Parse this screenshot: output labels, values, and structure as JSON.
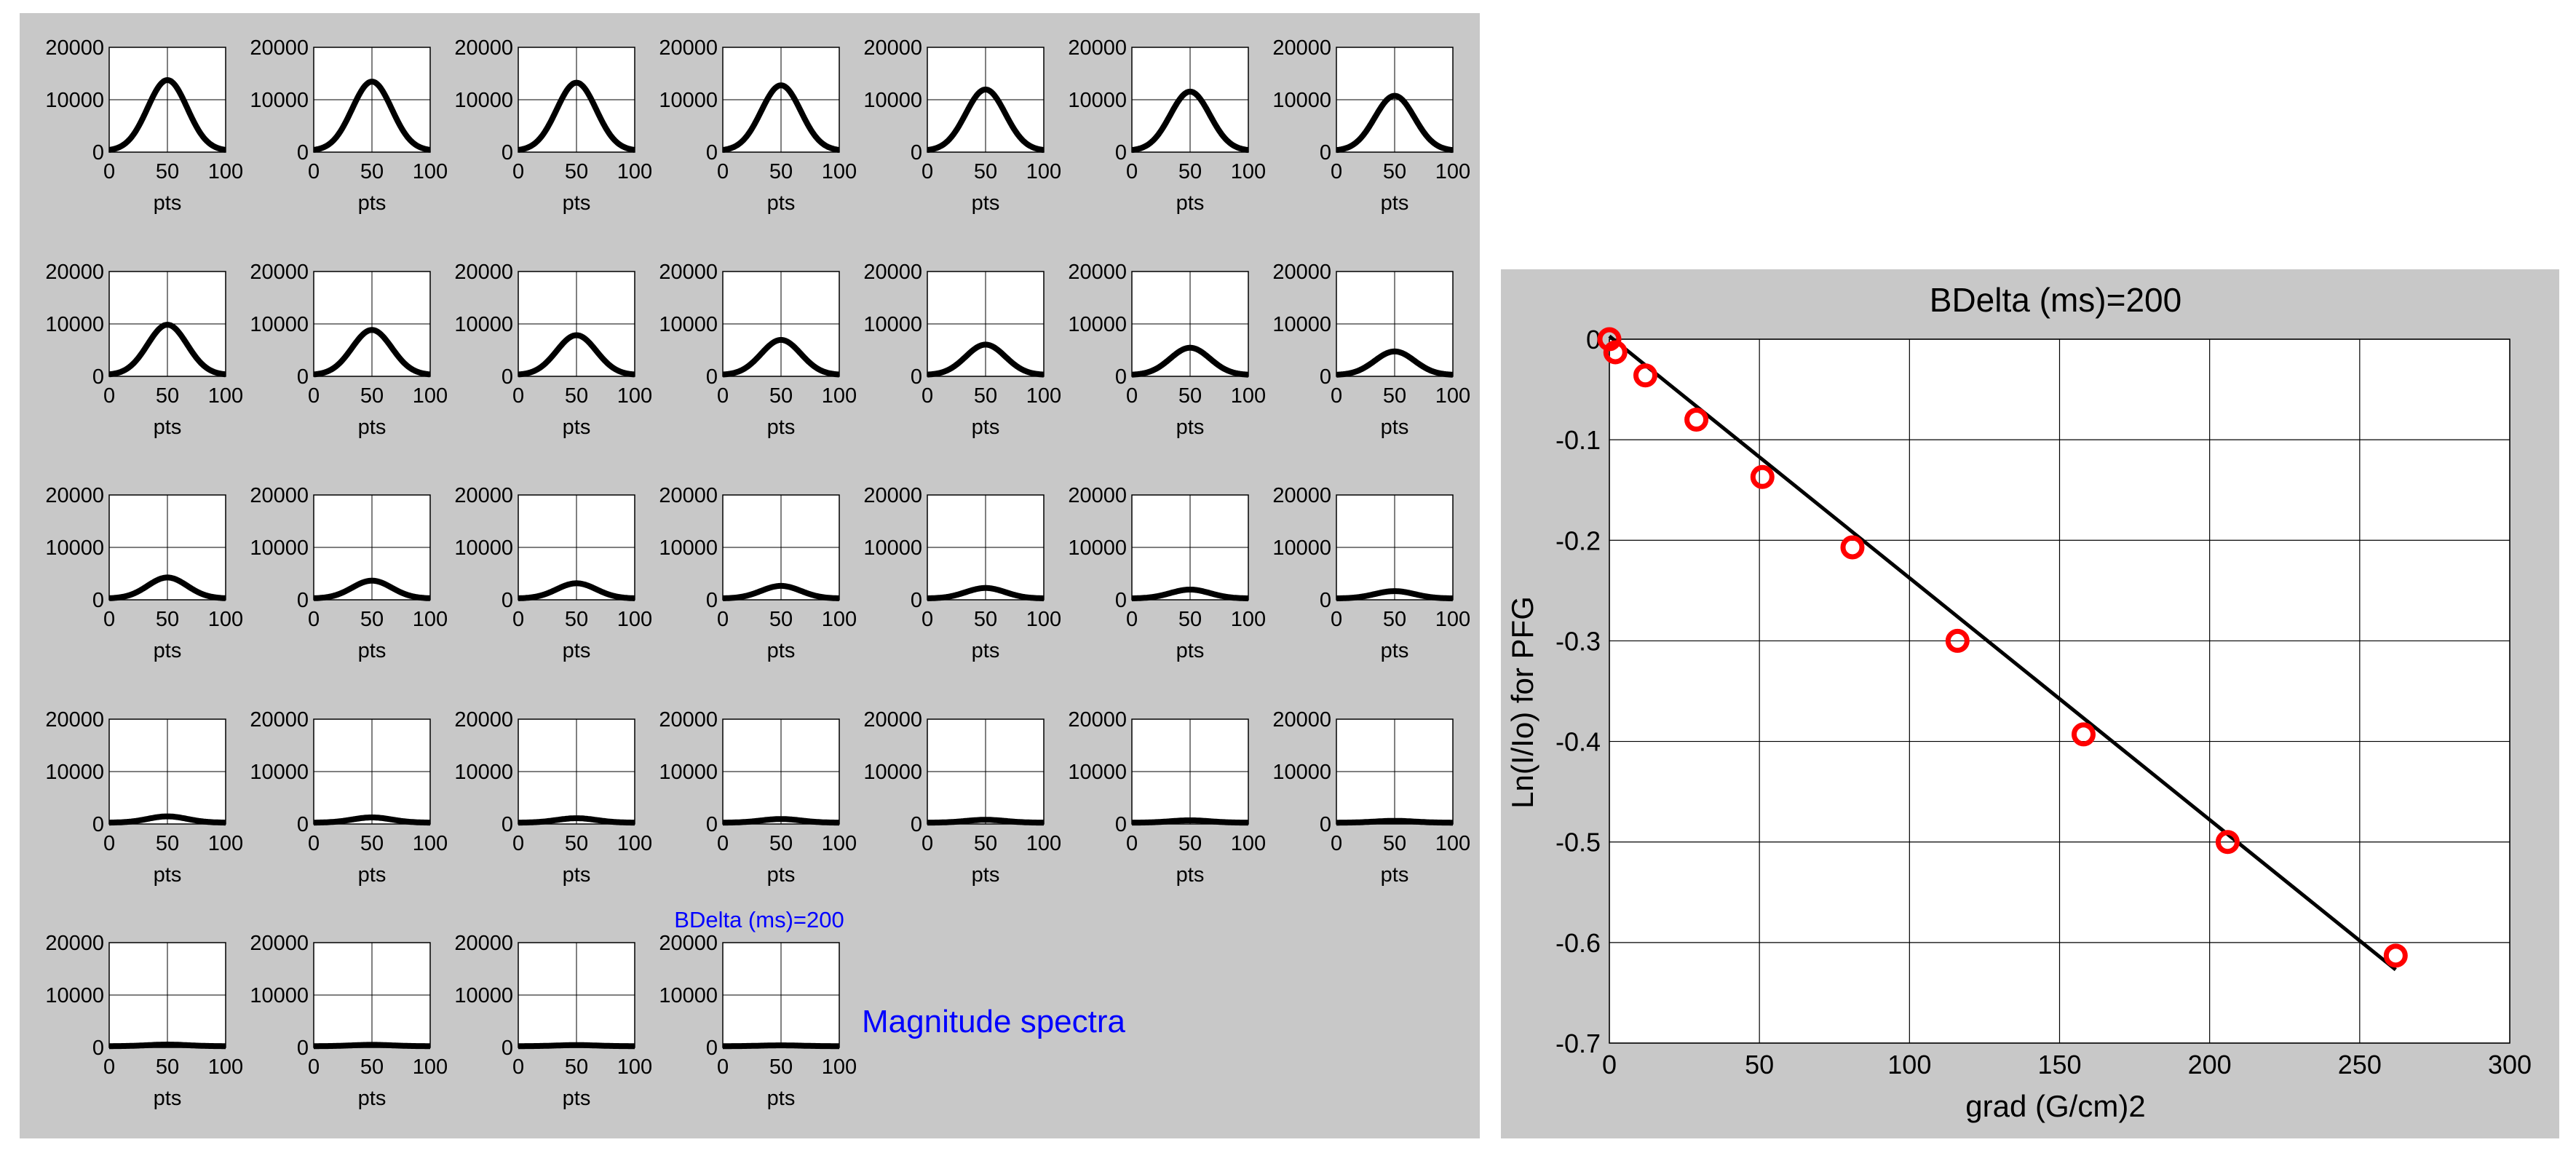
{
  "grid": {
    "xlim": [
      0,
      100
    ],
    "ylim": [
      0,
      20000
    ],
    "xticks": [
      "0",
      "50",
      "100"
    ],
    "yticks": [
      "0",
      "10000",
      "20000"
    ],
    "xlabel": "pts",
    "peak_center": 50,
    "peak_heights": [
      13500,
      13200,
      13000,
      12500,
      11700,
      11300,
      10500,
      9600,
      8600,
      7600,
      6700,
      5800,
      5200,
      4500,
      4000,
      3400,
      2900,
      2400,
      2000,
      1700,
      1400,
      1200,
      1000,
      850,
      700,
      550,
      450,
      350,
      300,
      250,
      200,
      150
    ],
    "annotation_small": "BDelta (ms)=200",
    "annotation_large": "Magnitude spectra"
  },
  "chart_data": {
    "type": "scatter",
    "title": "BDelta (ms)=200",
    "xlabel": "grad (G/cm)2",
    "ylabel": "Ln(I/Io) for PFG",
    "xlim": [
      0,
      300
    ],
    "ylim": [
      -0.7,
      0
    ],
    "xticks": [
      "0",
      "50",
      "100",
      "150",
      "200",
      "250",
      "300"
    ],
    "yticks": [
      "0",
      "-0.1",
      "-0.2",
      "-0.3",
      "-0.4",
      "-0.5",
      "-0.6",
      "-0.7"
    ],
    "grid": true,
    "series": [
      {
        "kind": "points",
        "color": "#ff0000",
        "x": [
          0,
          2,
          12,
          29,
          51,
          81,
          116,
          158,
          206,
          262
        ],
        "y": [
          0.0,
          -0.013,
          -0.036,
          -0.08,
          -0.137,
          -0.207,
          -0.3,
          -0.393,
          -0.5,
          -0.613
        ]
      },
      {
        "kind": "fit",
        "color": "#000000",
        "x": [
          0,
          262
        ],
        "y": [
          0.003,
          -0.627
        ]
      }
    ]
  }
}
